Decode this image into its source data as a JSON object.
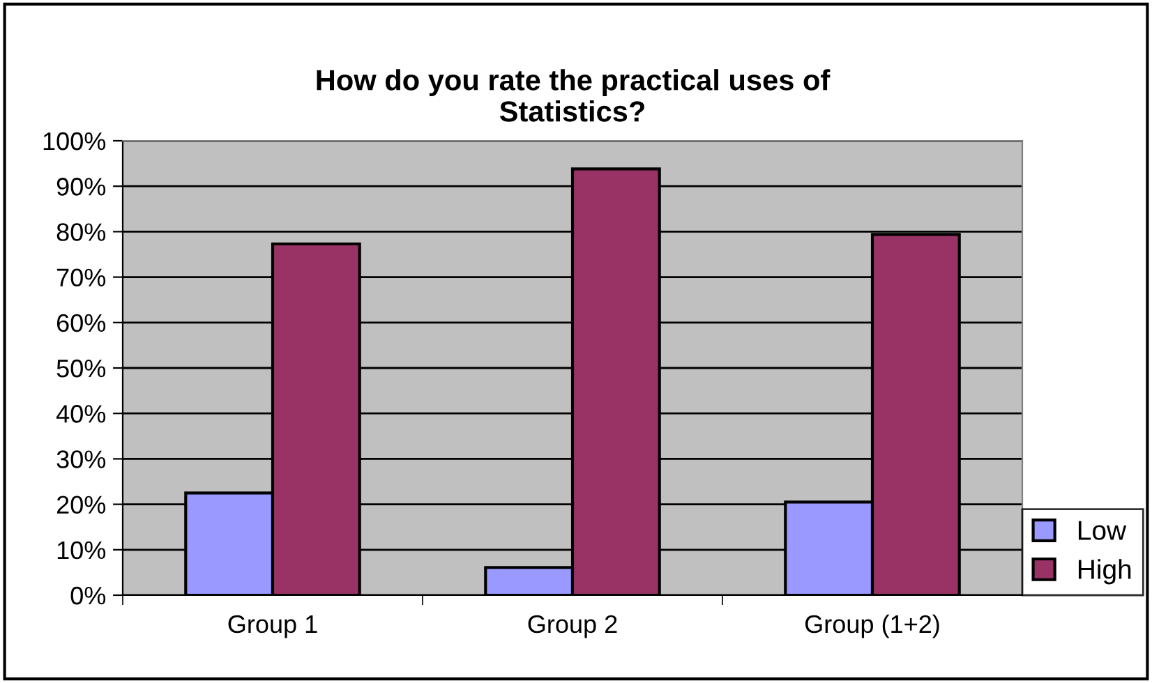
{
  "chart_data": {
    "type": "bar",
    "title": "How do you rate the practical uses of\nStatistics?",
    "categories": [
      "Group 1",
      "Group 2",
      "Group (1+2)"
    ],
    "series": [
      {
        "name": "Low",
        "color": "#9999ff",
        "values": [
          22.5,
          6.1,
          20.5
        ]
      },
      {
        "name": "High",
        "color": "#993366",
        "values": [
          77.3,
          93.8,
          79.4
        ]
      }
    ],
    "ylim": [
      0,
      100
    ],
    "yticks": [
      {
        "value": 0,
        "label": "0%"
      },
      {
        "value": 10,
        "label": "10%"
      },
      {
        "value": 20,
        "label": "20%"
      },
      {
        "value": 30,
        "label": "30%"
      },
      {
        "value": 40,
        "label": "40%"
      },
      {
        "value": 50,
        "label": "50%"
      },
      {
        "value": 60,
        "label": "60%"
      },
      {
        "value": 70,
        "label": "70%"
      },
      {
        "value": 80,
        "label": "80%"
      },
      {
        "value": 90,
        "label": "90%"
      },
      {
        "value": 100,
        "label": "100%"
      }
    ],
    "grid": "y",
    "legend": "right"
  }
}
